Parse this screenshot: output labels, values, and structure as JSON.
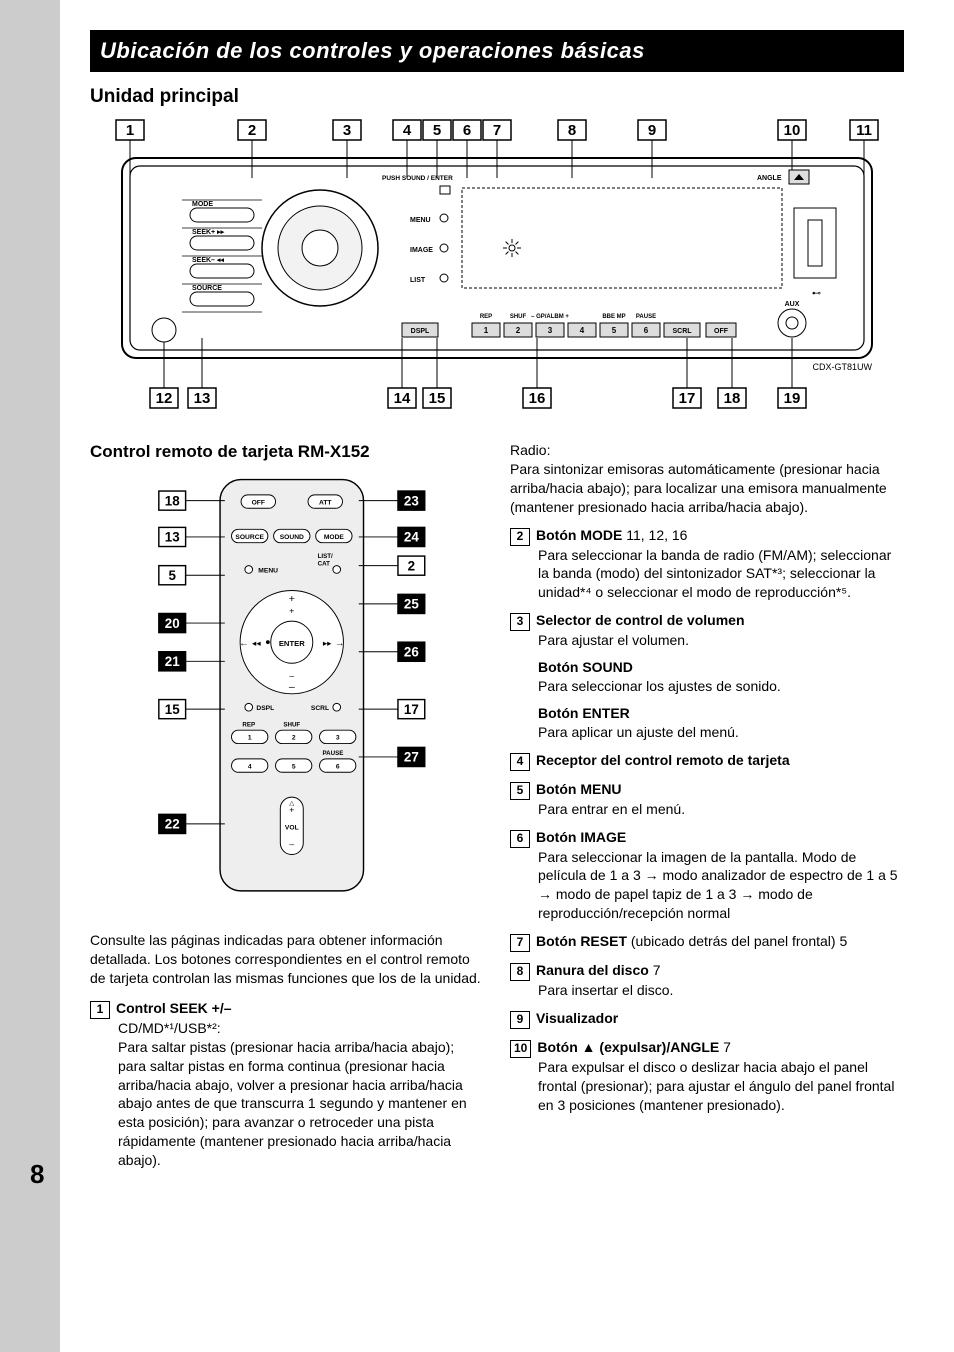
{
  "page_number": "8",
  "header_title": "Ubicación de los controles y operaciones básicas",
  "main_unit_title": "Unidad principal",
  "model_label": "CDX-GT81UW",
  "remote_title": "Control remoto de tarjeta RM-X152",
  "intro_text": "Consulte las páginas indicadas para obtener información detallada. Los botones correspondientes en el control remoto de tarjeta controlan las mismas funciones que los de la unidad.",
  "main_diagram": {
    "top_callouts": [
      "1",
      "2",
      "3",
      "4",
      "5",
      "6",
      "7",
      "8",
      "9",
      "10",
      "11"
    ],
    "bottom_callouts": [
      "12",
      "13",
      "14",
      "15",
      "16",
      "17",
      "18",
      "19"
    ],
    "labels": {
      "push": "PUSH SOUND / ENTER",
      "angle": "ANGLE",
      "mode": "MODE",
      "seek_plus": "SEEK+",
      "seek_minus": "SEEK–",
      "source": "SOURCE",
      "menu": "MENU",
      "image": "IMAGE",
      "list": "LIST",
      "dspl": "DSPL",
      "scrl": "SCRL",
      "off": "OFF",
      "rep": "REP",
      "shuf": "SHUF",
      "gpalbm": "– GP/ALBM +",
      "bbemp": "BBE MP",
      "pause": "PAUSE",
      "aux": "AUX"
    },
    "num_buttons": [
      "1",
      "2",
      "3",
      "4",
      "5",
      "6"
    ],
    "colors": {
      "stroke": "#000000",
      "fill_bg": "#ffffff",
      "gray": "#dddddd"
    },
    "line_width": 1
  },
  "remote_diagram": {
    "left_callouts": [
      {
        "n": "18",
        "inv": false
      },
      {
        "n": "13",
        "inv": false
      },
      {
        "n": "5",
        "inv": false
      },
      {
        "n": "20",
        "inv": true
      },
      {
        "n": "21",
        "inv": true
      },
      {
        "n": "15",
        "inv": false
      },
      {
        "n": "22",
        "inv": true
      }
    ],
    "right_callouts": [
      {
        "n": "23",
        "inv": true
      },
      {
        "n": "24",
        "inv": true
      },
      {
        "n": "2",
        "inv": false
      },
      {
        "n": "25",
        "inv": true
      },
      {
        "n": "26",
        "inv": true
      },
      {
        "n": "17",
        "inv": false
      },
      {
        "n": "27",
        "inv": true
      }
    ],
    "labels": {
      "off": "OFF",
      "att": "ATT",
      "source": "SOURCE",
      "sound": "SOUND",
      "mode": "MODE",
      "menu": "MENU",
      "listcat": "LIST/\nCAT",
      "enter": "ENTER",
      "dspl": "DSPL",
      "scrl": "SCRL",
      "rep": "REP",
      "shuf": "SHUF",
      "pause": "PAUSE",
      "vol": "VOL"
    },
    "num_buttons_top": [
      "1",
      "2",
      "3"
    ],
    "num_buttons_bottom": [
      "4",
      "5",
      "6"
    ],
    "colors": {
      "stroke": "#000000",
      "fill_body": "#eeeeee",
      "fill_btn": "#ffffff"
    }
  },
  "items": [
    {
      "num": "1",
      "title": "Control SEEK +/–",
      "pages": "",
      "body_lead": "CD/MD*¹/USB*²:",
      "body": "Para saltar pistas (presionar hacia arriba/hacia abajo); para saltar pistas en forma continua (presionar hacia arriba/hacia abajo, volver a presionar hacia arriba/hacia abajo antes de que transcurra 1 segundo y mantener en esta posición); para avanzar o retroceder una pista rápidamente (mantener presionado hacia arriba/hacia abajo).",
      "body2_lead": "Radio:",
      "body2": "Para sintonizar emisoras automáticamente (presionar hacia arriba/hacia abajo); para localizar una emisora manualmente (mantener presionado hacia arriba/hacia abajo).",
      "col": "split"
    },
    {
      "num": "2",
      "title": "Botón MODE",
      "pages": " 11, 12, 16",
      "body": "Para seleccionar la banda de radio (FM/AM); seleccionar la banda (modo) del sintonizador SAT*³; seleccionar la unidad*⁴ o seleccionar el modo de reproducción*⁵.",
      "col": "right"
    },
    {
      "num": "3",
      "title": "Selector de control de volumen",
      "pages": "",
      "body": "Para ajustar el volumen.",
      "subs": [
        {
          "title": "Botón SOUND",
          "body": "Para seleccionar los ajustes de sonido."
        },
        {
          "title": "Botón ENTER",
          "body": "Para aplicar un ajuste del menú."
        }
      ],
      "col": "right"
    },
    {
      "num": "4",
      "title": "Receptor del control remoto de tarjeta",
      "pages": "",
      "body": "",
      "col": "right"
    },
    {
      "num": "5",
      "title": "Botón MENU",
      "pages": "",
      "body": "Para entrar en el menú.",
      "col": "right"
    },
    {
      "num": "6",
      "title": "Botón IMAGE",
      "pages": "",
      "body": "Para seleccionar la imagen de la pantalla. Modo de película de 1 a 3 → modo analizador de espectro de 1 a 5 → modo de papel tapiz de 1 a 3 → modo de reproducción/recepción normal",
      "col": "right"
    },
    {
      "num": "7",
      "title": "Botón RESET",
      "title_suffix": " (ubicado detrás del panel frontal)",
      "pages": " 5",
      "body": "",
      "col": "right"
    },
    {
      "num": "8",
      "title": "Ranura del disco",
      "pages": " 7",
      "body": "Para insertar el disco.",
      "col": "right"
    },
    {
      "num": "9",
      "title": "Visualizador",
      "pages": "",
      "body": "",
      "col": "right"
    },
    {
      "num": "10",
      "title": "Botón ▲ (expulsar)/ANGLE",
      "pages": " 7",
      "body": "Para expulsar el disco o deslizar hacia abajo el panel frontal (presionar); para ajustar el ángulo del panel frontal en 3 posiciones (mantener presionado).",
      "col": "right"
    }
  ]
}
